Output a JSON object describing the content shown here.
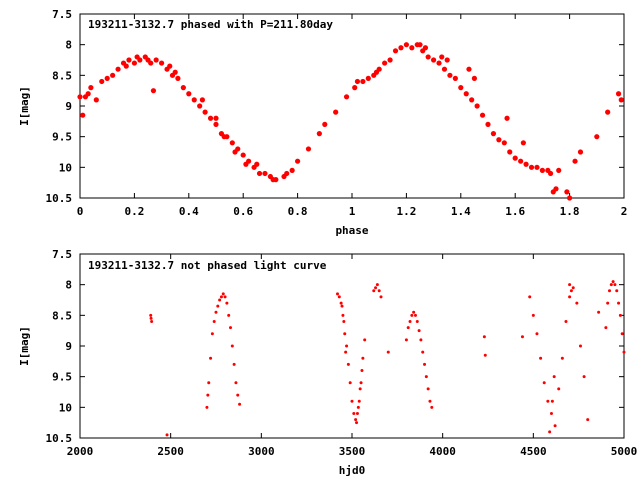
{
  "chart_data": [
    {
      "type": "scatter",
      "title": "193211-3132.7 phased with P=211.80day",
      "xlabel": "phase",
      "ylabel": "I[mag]",
      "xlim": [
        0,
        2
      ],
      "ylim": [
        10.5,
        7.5
      ],
      "y_inverted": true,
      "x_ticks": [
        "0",
        "0.2",
        "0.4",
        "0.6",
        "0.8",
        "1",
        "1.2",
        "1.4",
        "1.6",
        "1.8",
        "2"
      ],
      "y_ticks": [
        "7.5",
        "8",
        "8.5",
        "9",
        "9.5",
        "10",
        "10.5"
      ],
      "grid": false,
      "marker": "filled-circle",
      "color": "#ff0000",
      "series": [
        {
          "x": [
            0.01,
            0.02,
            0.04,
            0.06,
            0.08,
            0.1,
            0.12,
            0.14,
            0.16,
            0.18,
            0.2,
            0.22,
            0.24,
            0.26,
            0.28,
            0.3,
            0.32,
            0.34,
            0.36,
            0.38,
            0.4,
            0.42,
            0.44,
            0.46,
            0.48,
            0.5,
            0.52,
            0.54,
            0.56,
            0.58,
            0.6,
            0.62,
            0.64,
            0.66,
            0.68,
            0.7,
            0.72,
            0.76,
            0.78,
            0.8,
            0.84,
            0.88,
            0.9,
            0.94,
            0.98,
            1.01,
            1.02,
            1.04,
            1.06,
            1.08,
            1.1,
            1.12,
            1.14,
            1.16,
            1.18,
            1.2,
            1.22,
            1.24,
            1.26,
            1.28,
            1.3,
            1.32,
            1.34,
            1.36,
            1.38,
            1.4,
            1.42,
            1.44,
            1.46,
            1.48,
            1.5,
            1.52,
            1.54,
            1.56,
            1.58,
            1.6,
            1.62,
            1.64,
            1.66,
            1.68,
            1.7,
            1.72,
            1.74,
            1.76,
            1.8,
            1.82,
            1.84,
            1.9,
            1.94,
            1.98,
            0.03,
            0.17,
            0.21,
            0.27,
            0.33,
            0.45,
            0.53,
            0.61,
            0.71,
            1.09,
            1.27,
            1.35,
            1.45,
            1.57,
            1.73,
            1.79,
            0.0,
            0.25,
            0.35,
            0.5,
            0.57,
            0.65,
            0.75,
            1.25,
            1.33,
            1.43,
            1.63,
            1.75,
            1.99
          ],
          "y": [
            9.15,
            8.85,
            8.7,
            8.9,
            8.6,
            8.55,
            8.5,
            8.4,
            8.3,
            8.25,
            8.3,
            8.25,
            8.2,
            8.3,
            8.25,
            8.3,
            8.4,
            8.5,
            8.55,
            8.7,
            8.8,
            8.9,
            9.0,
            9.1,
            9.2,
            9.3,
            9.45,
            9.5,
            9.6,
            9.7,
            9.8,
            9.9,
            10.0,
            10.1,
            10.1,
            10.15,
            10.2,
            10.1,
            10.05,
            9.9,
            9.7,
            9.45,
            9.3,
            9.1,
            8.85,
            8.7,
            8.6,
            8.6,
            8.55,
            8.5,
            8.4,
            8.3,
            8.25,
            8.1,
            8.05,
            8.0,
            8.05,
            8.0,
            8.1,
            8.2,
            8.25,
            8.3,
            8.4,
            8.5,
            8.55,
            8.7,
            8.8,
            8.9,
            9.0,
            9.15,
            9.3,
            9.45,
            9.55,
            9.6,
            9.75,
            9.85,
            9.9,
            9.95,
            10.0,
            10.0,
            10.05,
            10.05,
            10.4,
            10.05,
            10.5,
            9.9,
            9.75,
            9.5,
            9.1,
            8.8,
            8.8,
            8.35,
            8.2,
            8.75,
            8.35,
            8.9,
            9.5,
            9.95,
            10.2,
            8.45,
            8.05,
            8.25,
            8.55,
            9.2,
            10.1,
            10.4,
            8.85,
            8.25,
            8.45,
            9.2,
            9.75,
            9.95,
            10.15,
            8.0,
            8.2,
            8.4,
            9.6,
            10.35,
            8.9
          ]
        }
      ]
    },
    {
      "type": "scatter",
      "title": "193211-3132.7 not phased light curve",
      "xlabel": "hjd0",
      "ylabel": "I[mag]",
      "xlim": [
        2000,
        5000
      ],
      "ylim": [
        10.5,
        7.5
      ],
      "y_inverted": true,
      "x_ticks": [
        "2000",
        "2500",
        "3000",
        "3500",
        "4000",
        "4500",
        "5000"
      ],
      "y_ticks": [
        "7.5",
        "8",
        "8.5",
        "9",
        "9.5",
        "10",
        "10.5"
      ],
      "grid": false,
      "marker": "small-dot",
      "color": "#ff0000",
      "series": [
        {
          "x": [
            2390,
            2392,
            2395,
            2480,
            2700,
            2705,
            2710,
            2720,
            2730,
            2740,
            2750,
            2760,
            2770,
            2780,
            2790,
            2800,
            2810,
            2820,
            2830,
            2840,
            2850,
            2860,
            2870,
            2880,
            3420,
            3430,
            3440,
            3450,
            3460,
            3470,
            3480,
            3490,
            3500,
            3510,
            3520,
            3530,
            3540,
            3550,
            3560,
            3570,
            3620,
            3630,
            3640,
            3650,
            3660,
            3700,
            3800,
            3810,
            3820,
            3830,
            3840,
            3850,
            3860,
            3870,
            3880,
            3890,
            3900,
            3910,
            3920,
            3930,
            3940,
            4230,
            4235,
            4440,
            4480,
            4500,
            4520,
            4540,
            4560,
            4580,
            4600,
            4620,
            4640,
            4660,
            4680,
            4700,
            4720,
            4740,
            4760,
            4780,
            4800,
            4900,
            4910,
            4920,
            4930,
            4940,
            4950,
            4960,
            4970,
            4980,
            4990,
            5000,
            3445,
            3455,
            3465,
            3525,
            3535,
            3545,
            3555,
            4590,
            4605,
            4615,
            4700,
            4710,
            4860
          ],
          "y": [
            8.5,
            8.55,
            8.6,
            10.45,
            10.0,
            9.8,
            9.6,
            9.2,
            8.8,
            8.6,
            8.45,
            8.35,
            8.25,
            8.2,
            8.15,
            8.2,
            8.3,
            8.5,
            8.7,
            9.0,
            9.3,
            9.6,
            9.8,
            9.95,
            8.15,
            8.2,
            8.3,
            8.5,
            8.8,
            9.0,
            9.3,
            9.6,
            9.9,
            10.1,
            10.2,
            10.1,
            9.9,
            9.6,
            9.2,
            8.9,
            8.1,
            8.05,
            8.0,
            8.1,
            8.2,
            9.1,
            8.9,
            8.7,
            8.6,
            8.5,
            8.45,
            8.5,
            8.6,
            8.75,
            8.9,
            9.1,
            9.3,
            9.5,
            9.7,
            9.9,
            10.0,
            8.85,
            9.15,
            8.85,
            8.2,
            8.5,
            8.8,
            9.2,
            9.6,
            9.9,
            10.1,
            10.3,
            9.7,
            9.2,
            8.6,
            8.2,
            8.05,
            8.3,
            9.0,
            9.5,
            10.2,
            8.7,
            8.3,
            8.1,
            8.0,
            7.95,
            8.0,
            8.1,
            8.3,
            8.5,
            8.8,
            9.1,
            8.35,
            8.6,
            9.1,
            10.25,
            10.0,
            9.7,
            9.4,
            10.4,
            9.9,
            9.5,
            8.0,
            8.1,
            8.45
          ]
        }
      ]
    }
  ]
}
